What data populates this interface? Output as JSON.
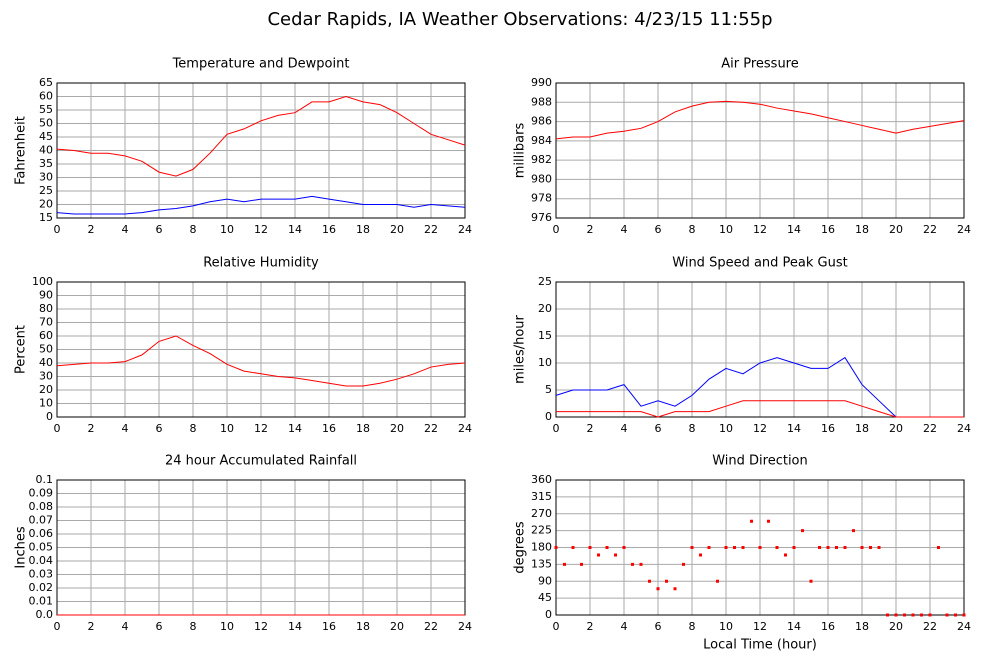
{
  "title": "Cedar Rapids, IA Weather Observations: 4/23/15 11:55p",
  "chart_data": [
    {
      "type": "line",
      "title": "Temperature and Dewpoint",
      "ylabel": "Fahrenheit",
      "x": [
        0,
        1,
        2,
        3,
        4,
        5,
        6,
        7,
        8,
        9,
        10,
        11,
        12,
        13,
        14,
        15,
        16,
        17,
        18,
        19,
        20,
        21,
        22,
        23,
        24
      ],
      "series": [
        {
          "color": "#ff0000",
          "values": [
            40.5,
            40,
            39,
            39,
            38,
            36,
            32,
            30.5,
            33,
            39,
            46,
            48,
            51,
            53,
            54,
            58,
            58,
            60,
            58,
            57,
            54,
            50,
            46,
            44,
            42
          ]
        },
        {
          "color": "#0000ff",
          "values": [
            17,
            16.5,
            16.5,
            16.5,
            16.5,
            17,
            18,
            18.5,
            19.5,
            21,
            22,
            21,
            22,
            22,
            22,
            23,
            22,
            21,
            20,
            20,
            20,
            19,
            20,
            19.5,
            19
          ]
        }
      ],
      "xlim": [
        0,
        24
      ],
      "xticks": [
        0,
        2,
        4,
        6,
        8,
        10,
        12,
        14,
        16,
        18,
        20,
        22,
        24
      ],
      "ylim": [
        15,
        65
      ],
      "yticks": [
        15,
        20,
        25,
        30,
        35,
        40,
        45,
        50,
        55,
        60,
        65
      ],
      "grid": true
    },
    {
      "type": "line",
      "title": "Air Pressure",
      "ylabel": "millibars",
      "x": [
        0,
        1,
        2,
        3,
        4,
        5,
        6,
        7,
        8,
        9,
        10,
        11,
        12,
        13,
        14,
        15,
        16,
        17,
        18,
        19,
        20,
        21,
        22,
        23,
        24
      ],
      "series": [
        {
          "color": "#ff0000",
          "values": [
            984.2,
            984.4,
            984.4,
            984.8,
            985.0,
            985.3,
            986.0,
            987.0,
            987.6,
            988.0,
            988.1,
            988.0,
            987.8,
            987.4,
            987.1,
            986.8,
            986.4,
            986.0,
            985.6,
            985.2,
            984.8,
            985.2,
            985.5,
            985.8,
            986.1
          ]
        }
      ],
      "xlim": [
        0,
        24
      ],
      "xticks": [
        0,
        2,
        4,
        6,
        8,
        10,
        12,
        14,
        16,
        18,
        20,
        22,
        24
      ],
      "ylim": [
        976,
        990
      ],
      "yticks": [
        976,
        978,
        980,
        982,
        984,
        986,
        988,
        990
      ],
      "grid": true
    },
    {
      "type": "line",
      "title": "Relative Humidity",
      "ylabel": "Percent",
      "x": [
        0,
        1,
        2,
        3,
        4,
        5,
        6,
        7,
        8,
        9,
        10,
        11,
        12,
        13,
        14,
        15,
        16,
        17,
        18,
        19,
        20,
        21,
        22,
        23,
        24
      ],
      "series": [
        {
          "color": "#ff0000",
          "values": [
            38,
            39,
            40,
            40,
            41,
            46,
            56,
            60,
            53,
            47,
            39,
            34,
            32,
            30,
            29,
            27,
            25,
            23,
            23,
            25,
            28,
            32,
            37,
            39,
            40
          ]
        }
      ],
      "xlim": [
        0,
        24
      ],
      "xticks": [
        0,
        2,
        4,
        6,
        8,
        10,
        12,
        14,
        16,
        18,
        20,
        22,
        24
      ],
      "ylim": [
        0,
        100
      ],
      "yticks": [
        0,
        10,
        20,
        30,
        40,
        50,
        60,
        70,
        80,
        90,
        100
      ],
      "grid": true
    },
    {
      "type": "line",
      "title": "Wind Speed and Peak Gust",
      "ylabel": "miles/hour",
      "x": [
        0,
        1,
        2,
        3,
        4,
        5,
        6,
        7,
        8,
        9,
        10,
        11,
        12,
        13,
        14,
        15,
        16,
        17,
        18,
        19,
        20,
        21,
        22,
        23,
        24
      ],
      "series": [
        {
          "color": "#0000ff",
          "values": [
            4,
            5,
            5,
            5,
            6,
            2,
            3,
            2,
            4,
            7,
            9,
            8,
            10,
            11,
            10,
            9,
            9,
            11,
            6,
            3,
            0,
            0,
            0,
            0,
            0
          ]
        },
        {
          "color": "#ff0000",
          "values": [
            1,
            1,
            1,
            1,
            1,
            1,
            0,
            1,
            1,
            1,
            2,
            3,
            3,
            3,
            3,
            3,
            3,
            3,
            2,
            1,
            0,
            0,
            0,
            0,
            0
          ]
        }
      ],
      "xlim": [
        0,
        24
      ],
      "xticks": [
        0,
        2,
        4,
        6,
        8,
        10,
        12,
        14,
        16,
        18,
        20,
        22,
        24
      ],
      "ylim": [
        0,
        25
      ],
      "yticks": [
        0,
        5,
        10,
        15,
        20,
        25
      ],
      "grid": true
    },
    {
      "type": "line",
      "title": "24 hour Accumulated Rainfall",
      "ylabel": "Inches",
      "x": [
        0,
        24
      ],
      "series": [
        {
          "color": "#ff0000",
          "values": [
            0,
            0
          ]
        }
      ],
      "xlim": [
        0,
        24
      ],
      "xticks": [
        0,
        2,
        4,
        6,
        8,
        10,
        12,
        14,
        16,
        18,
        20,
        22,
        24
      ],
      "ylim": [
        0,
        0.1
      ],
      "yticks": [
        {
          "value": 0,
          "label": "0.0"
        },
        0.01,
        0.02,
        0.03,
        0.04,
        0.05,
        0.06,
        0.07,
        0.08,
        0.09,
        0.1
      ],
      "grid": true
    },
    {
      "type": "scatter",
      "title": "Wind Direction",
      "ylabel": "degrees",
      "xlabel": "Local Time (hour)",
      "x": [
        0,
        0.5,
        1,
        1.5,
        2,
        2.5,
        3,
        3.5,
        4,
        4.5,
        5,
        5.5,
        6,
        6.5,
        7,
        7.5,
        8,
        8.5,
        9,
        9.5,
        10,
        10.5,
        11,
        11.5,
        12,
        12.5,
        13,
        13.5,
        14,
        14.5,
        15,
        15.5,
        16,
        16.5,
        17,
        17.5,
        18,
        18.5,
        19,
        19.5,
        20,
        20.5,
        21,
        21.5,
        22,
        22.5,
        23,
        23.5,
        24
      ],
      "series": [
        {
          "color": "#ff0000",
          "values": [
            180,
            135,
            180,
            135,
            180,
            160,
            180,
            160,
            180,
            135,
            135,
            90,
            70,
            90,
            70,
            135,
            180,
            160,
            180,
            90,
            180,
            180,
            180,
            250,
            180,
            250,
            180,
            160,
            180,
            225,
            90,
            180,
            180,
            180,
            180,
            225,
            180,
            180,
            180,
            0,
            0,
            0,
            0,
            0,
            0,
            180,
            0,
            0,
            0
          ]
        }
      ],
      "xlim": [
        0,
        24
      ],
      "xticks": [
        0,
        2,
        4,
        6,
        8,
        10,
        12,
        14,
        16,
        18,
        20,
        22,
        24
      ],
      "ylim": [
        0,
        360
      ],
      "yticks": [
        0,
        45,
        90,
        135,
        180,
        225,
        270,
        315,
        360
      ],
      "grid": true
    }
  ]
}
